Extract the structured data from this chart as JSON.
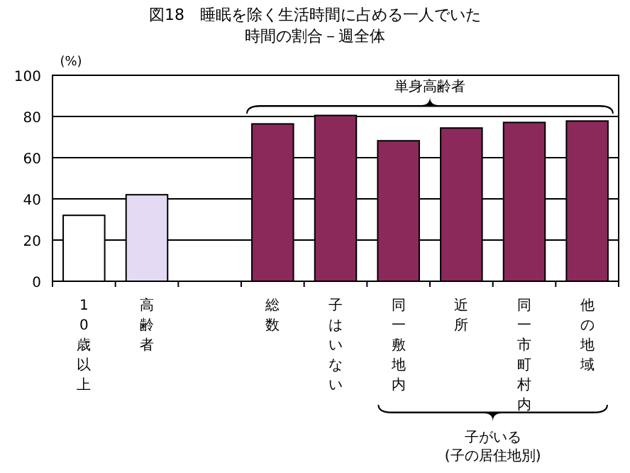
{
  "chart_data": {
    "type": "bar",
    "title": "図18　睡眠を除く生活時間に占める一人でいた時間の割合－週全体",
    "ylabel": "(%)",
    "categories": [
      "10歳以上",
      "高齢者",
      null,
      "総数",
      "子はいない",
      "同一敷地内",
      "近所",
      "同一市町村内",
      "他の地域"
    ],
    "values": [
      32,
      42,
      null,
      76.4,
      80.5,
      68.2,
      74.4,
      77.1,
      77.8
    ],
    "colors": [
      "#ffffff",
      "#e4daf4",
      null,
      "#8b2a5a",
      "#8b2a5a",
      "#8b2a5a",
      "#8b2a5a",
      "#8b2a5a",
      "#8b2a5a"
    ],
    "ylim": [
      0,
      100
    ],
    "yticks": [
      0,
      20,
      40,
      60,
      80,
      100
    ],
    "grid": "y",
    "annotations": [
      "単身高齢者",
      "子がいる\n(子の居住地別)"
    ]
  }
}
